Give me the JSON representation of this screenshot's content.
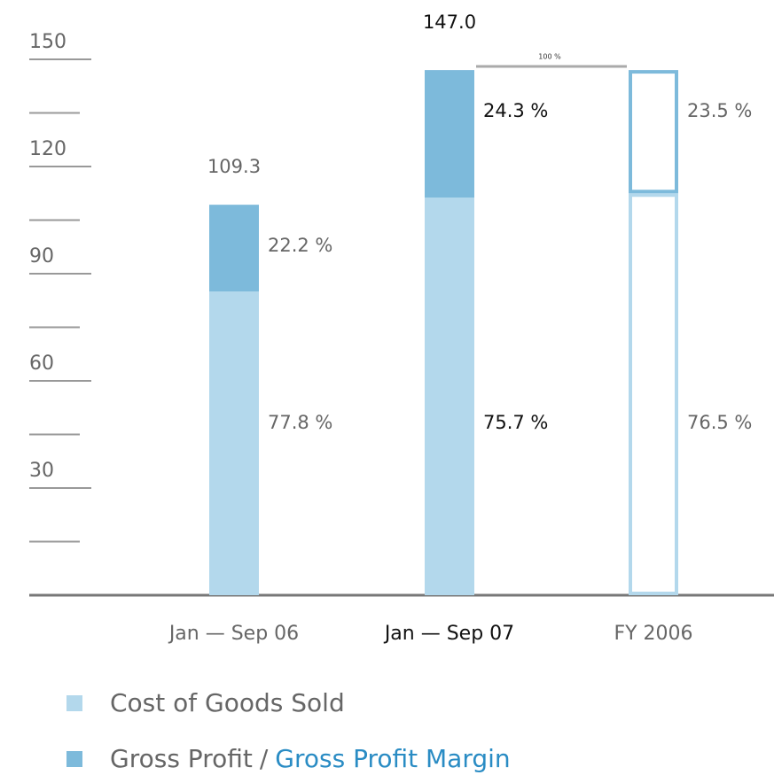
{
  "chart_data": {
    "type": "stacked_bar",
    "categories": [
      "Jan — Sep 06",
      "Jan — Sep 07",
      "FY 2006"
    ],
    "highlight_category": 1,
    "styles": [
      "solid",
      "solid",
      "outline"
    ],
    "series": [
      {
        "name": "Cost of Goods Sold",
        "color": "#b3d8ec",
        "values": [
          85.0,
          111.3,
          112.5
        ],
        "shares": [
          {
            "value": 77.8,
            "label": "77.8 %"
          },
          {
            "value": 75.7,
            "label": "75.7 %"
          },
          {
            "value": 76.5,
            "label": "76.5 %"
          }
        ]
      },
      {
        "name": "Gross Profit",
        "color": "#7dbadb",
        "values": [
          24.3,
          35.7,
          34.5
        ],
        "shares": [
          {
            "value": 22.2,
            "label": "22.2 %"
          },
          {
            "value": 24.3,
            "label": "24.3 %"
          },
          {
            "value": 23.5,
            "label": "23.5 %"
          }
        ]
      }
    ],
    "totals": [
      {
        "value": 109.3,
        "label": "109.3"
      },
      {
        "value": 147,
        "label": "147.0"
      },
      null
    ],
    "annotation": "100 %",
    "legend_separator": "/",
    "legend_note": "Gross Profit Margin",
    "legend_note_color": "#2a8cc4",
    "ylim": [
      0,
      150
    ],
    "yticks": [
      30,
      60,
      90,
      120,
      150
    ],
    "minor_yticks": [
      15,
      45,
      75,
      105,
      135
    ]
  }
}
